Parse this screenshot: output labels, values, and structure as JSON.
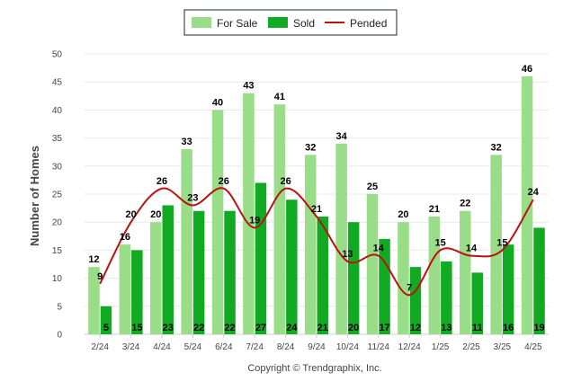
{
  "chart_data": {
    "type": "bar",
    "categories": [
      "2/24",
      "3/24",
      "4/24",
      "5/24",
      "6/24",
      "7/24",
      "8/24",
      "9/24",
      "10/24",
      "11/24",
      "12/24",
      "1/25",
      "2/25",
      "3/25",
      "4/25"
    ],
    "series": [
      {
        "name": "For Sale",
        "kind": "bar",
        "color": "#99dd88",
        "values": [
          12,
          16,
          20,
          33,
          40,
          43,
          41,
          32,
          34,
          25,
          20,
          21,
          22,
          32,
          46
        ]
      },
      {
        "name": "Sold",
        "kind": "bar",
        "color": "#11aa22",
        "values": [
          5,
          15,
          23,
          22,
          22,
          27,
          24,
          21,
          20,
          17,
          12,
          13,
          11,
          16,
          19
        ]
      },
      {
        "name": "Pended",
        "kind": "line",
        "color": "#bb1111",
        "values": [
          9,
          20,
          26,
          23,
          26,
          19,
          26,
          21,
          13,
          14,
          7,
          15,
          14,
          15,
          24
        ]
      }
    ],
    "ylabel": "Number of Homes",
    "xlabel": "",
    "ylim": [
      0,
      50
    ],
    "yticks": [
      0,
      5,
      10,
      15,
      20,
      25,
      30,
      35,
      40,
      45,
      50
    ],
    "grid": true,
    "legend_position": "top-center",
    "credit": "Copyright © Trendgraphix, Inc."
  }
}
